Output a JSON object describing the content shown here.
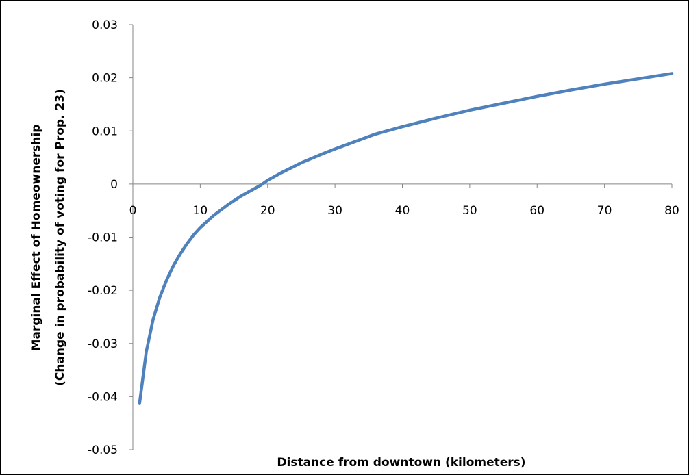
{
  "chart_data": {
    "type": "line",
    "xlabel": "Distance from downtown (kilometers)",
    "ylabel_line1": "Marginal Effect of Homeownership",
    "ylabel_line2": "(Change in probability of voting for Prop. 23)",
    "xlim": [
      0,
      80
    ],
    "ylim": [
      -0.05,
      0.03
    ],
    "x_ticks": [
      0,
      10,
      20,
      30,
      40,
      50,
      60,
      70,
      80
    ],
    "y_ticks": [
      0.03,
      0.02,
      0.01,
      0,
      -0.01,
      -0.02,
      -0.03,
      -0.04,
      -0.05
    ],
    "x_tick_labels": [
      "0",
      "10",
      "20",
      "30",
      "40",
      "50",
      "60",
      "70",
      "80"
    ],
    "y_tick_labels": [
      "0.03",
      "0.02",
      "0.01",
      "0",
      "-0.01",
      "-0.02",
      "-0.03",
      "-0.04",
      "-0.05"
    ],
    "grid": false,
    "legend": "none",
    "series": [
      {
        "color": "#4f81bd",
        "x": [
          1,
          2,
          3,
          4,
          5,
          6,
          7,
          8,
          9,
          10,
          12,
          14,
          16,
          18,
          19,
          20,
          22,
          25,
          28,
          30,
          33,
          36,
          40,
          45,
          50,
          55,
          60,
          65,
          70,
          75,
          80
        ],
        "y": [
          -0.0412,
          -0.0315,
          -0.0255,
          -0.0213,
          -0.0181,
          -0.0154,
          -0.0132,
          -0.0113,
          -0.0096,
          -0.0082,
          -0.0059,
          -0.004,
          -0.0023,
          -0.0009,
          -0.0002,
          0.0007,
          0.0021,
          0.004,
          0.0056,
          0.0066,
          0.008,
          0.0094,
          0.0108,
          0.0124,
          0.0139,
          0.0152,
          0.0165,
          0.0177,
          0.0188,
          0.0198,
          0.0208
        ]
      }
    ]
  }
}
